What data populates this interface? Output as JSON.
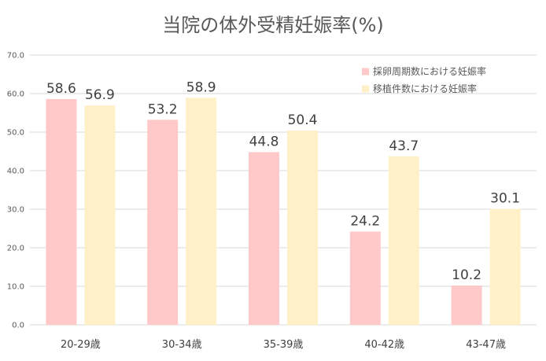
{
  "chart_data": {
    "type": "bar",
    "title": "当院の体外受精妊娠率(%)",
    "categories": [
      "20-29歳",
      "30-34歳",
      "35-39歳",
      "40-42歳",
      "43-47歳"
    ],
    "series": [
      {
        "name": "採卵周期数における妊娠率",
        "values": [
          58.6,
          53.2,
          44.8,
          24.2,
          10.2
        ],
        "color": "#ffc9c9"
      },
      {
        "name": "移植件数における妊娠率",
        "values": [
          56.9,
          58.9,
          50.4,
          43.7,
          30.1
        ],
        "color": "#fff0c8"
      }
    ],
    "ylim": [
      0,
      70
    ],
    "yticks": [
      "0.0",
      "10.0",
      "20.0",
      "30.0",
      "40.0",
      "50.0",
      "60.0",
      "70.0"
    ],
    "grid": true,
    "legend": "top-right",
    "data_labels": true
  }
}
